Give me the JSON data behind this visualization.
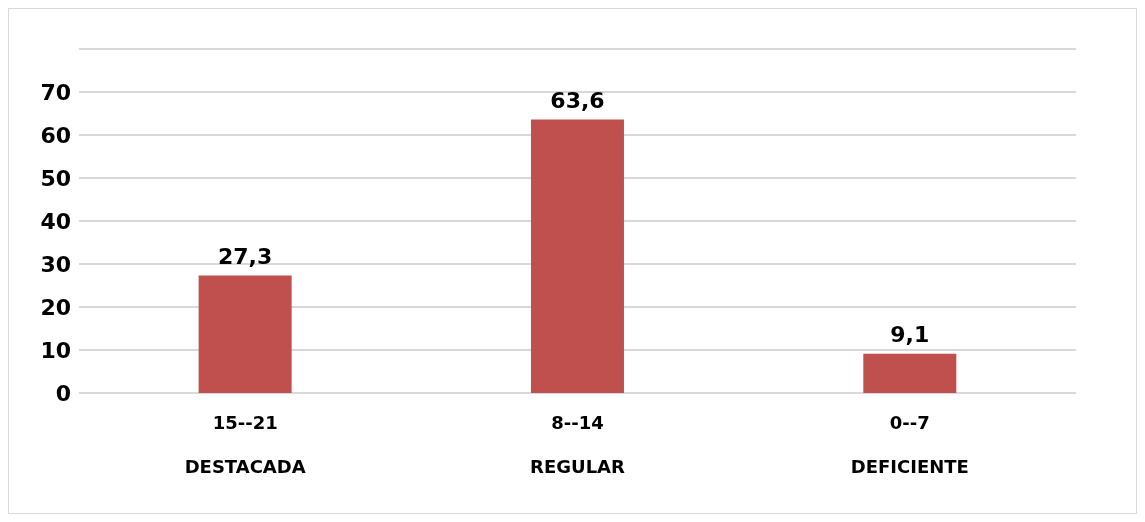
{
  "chart_data": {
    "type": "bar",
    "categories": [
      "15--21\nDESTACADA",
      "8--14\nREGULAR",
      "0--7\nDEFICIENTE"
    ],
    "values": [
      27.3,
      63.6,
      9.1
    ],
    "color": "#c0504d",
    "value_labels": [
      "27,3",
      "63,6",
      "9,1"
    ],
    "ylim": [
      0,
      80
    ],
    "yticks": [
      0,
      10,
      20,
      30,
      40,
      50,
      60,
      70,
      {
        "value": 80,
        "label": null
      }
    ],
    "grid": "y"
  }
}
